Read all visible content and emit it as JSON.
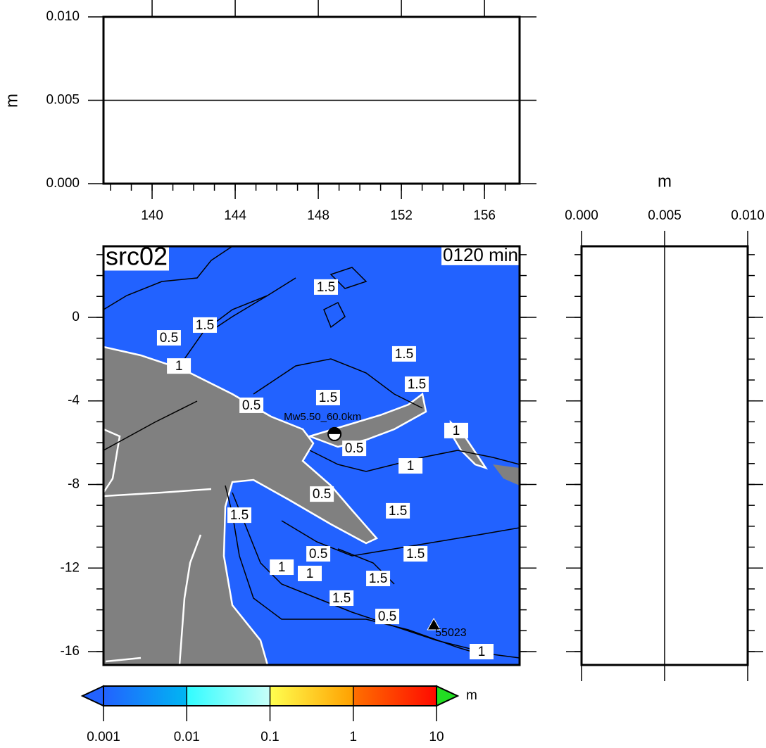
{
  "chart_data": [
    {
      "type": "line",
      "ylabel": "m",
      "xlim": [
        137.66,
        157.69
      ],
      "xticks": [
        140,
        144,
        148,
        152,
        156
      ],
      "xminor": 1,
      "ylim": [
        0,
        0.01
      ],
      "yticks": [
        {
          "value": 0,
          "label": "0.000"
        },
        {
          "value": 0.005,
          "label": "0.005"
        },
        {
          "value": 0.01,
          "label": "0.010"
        }
      ],
      "grid": true
    },
    {
      "type": "map",
      "title": "src02",
      "annotation": "0120 min",
      "xlim": [
        137.66,
        157.69
      ],
      "ylim": [
        -16.64,
        3.4
      ],
      "yticks": [
        0,
        -4,
        -8,
        -12,
        -16
      ],
      "yminor": 1,
      "sea_color": "#2262ff",
      "land_color": "#808080",
      "contour_labels": [
        {
          "value": 1.5,
          "lon": 148.37,
          "lat": 1.45
        },
        {
          "value": 0.5,
          "lon": 140.81,
          "lat": -0.98
        },
        {
          "value": 1.5,
          "lon": 142.54,
          "lat": -0.37
        },
        {
          "value": 1,
          "lon": 141.29,
          "lat": -2.33
        },
        {
          "value": 1.5,
          "lon": 152.13,
          "lat": -1.75
        },
        {
          "value": 1.5,
          "lon": 152.74,
          "lat": -3.2
        },
        {
          "value": 1.5,
          "lon": 148.47,
          "lat": -3.84
        },
        {
          "value": 0.5,
          "lon": 144.78,
          "lat": -4.21
        },
        {
          "value": 0.5,
          "lon": 149.73,
          "lat": -6.27
        },
        {
          "value": 1,
          "lon": 152.44,
          "lat": -7.11
        },
        {
          "value": 1,
          "lon": 154.64,
          "lat": -5.42
        },
        {
          "value": 0.5,
          "lon": 148.17,
          "lat": -8.46
        },
        {
          "value": 1.5,
          "lon": 151.83,
          "lat": -9.26
        },
        {
          "value": 1.5,
          "lon": 144.2,
          "lat": -9.47
        },
        {
          "value": 1.5,
          "lon": 152.68,
          "lat": -11.32
        },
        {
          "value": 0.5,
          "lon": 148.0,
          "lat": -11.32
        },
        {
          "value": 1,
          "lon": 146.24,
          "lat": -11.96
        },
        {
          "value": 1,
          "lon": 147.59,
          "lat": -12.26
        },
        {
          "value": 1.5,
          "lon": 150.88,
          "lat": -12.5
        },
        {
          "value": 1.5,
          "lon": 149.12,
          "lat": -13.44
        },
        {
          "value": 0.5,
          "lon": 151.32,
          "lat": -14.32
        },
        {
          "value": 1,
          "lon": 155.86,
          "lat": -16.0
        }
      ],
      "epicenter": {
        "label": "Mw5.50_60.0km",
        "lon": 148.78,
        "lat": -5.59
      },
      "station": {
        "label": "55023",
        "lon": 153.56,
        "lat": -14.72
      }
    },
    {
      "type": "profile",
      "xlabel": "m",
      "xlim": [
        0,
        0.01
      ],
      "xticks": [
        {
          "value": 0,
          "label": "0.000"
        },
        {
          "value": 0.005,
          "label": "0.005"
        },
        {
          "value": 0.01,
          "label": "0.010"
        }
      ],
      "ylim": [
        -16.64,
        3.4
      ],
      "yticks": [
        0,
        -4,
        -8,
        -12,
        -16
      ],
      "yminor": 1,
      "grid": true
    },
    {
      "type": "colorbar",
      "label": "m",
      "log": true,
      "xlim": [
        0.001,
        10
      ],
      "xticks": [
        0.001,
        0.01,
        0.1,
        1,
        10
      ],
      "segments": [
        {
          "from": "#2262ff",
          "to": "#00b6f2"
        },
        {
          "from": "#30fcff",
          "to": "#c8fff8"
        },
        {
          "from": "#ffff50",
          "to": "#ffa000"
        },
        {
          "from": "#ff7000",
          "to": "#ff0a00"
        }
      ],
      "under_color": "#2262ff",
      "over_color": "#22dd22"
    }
  ]
}
